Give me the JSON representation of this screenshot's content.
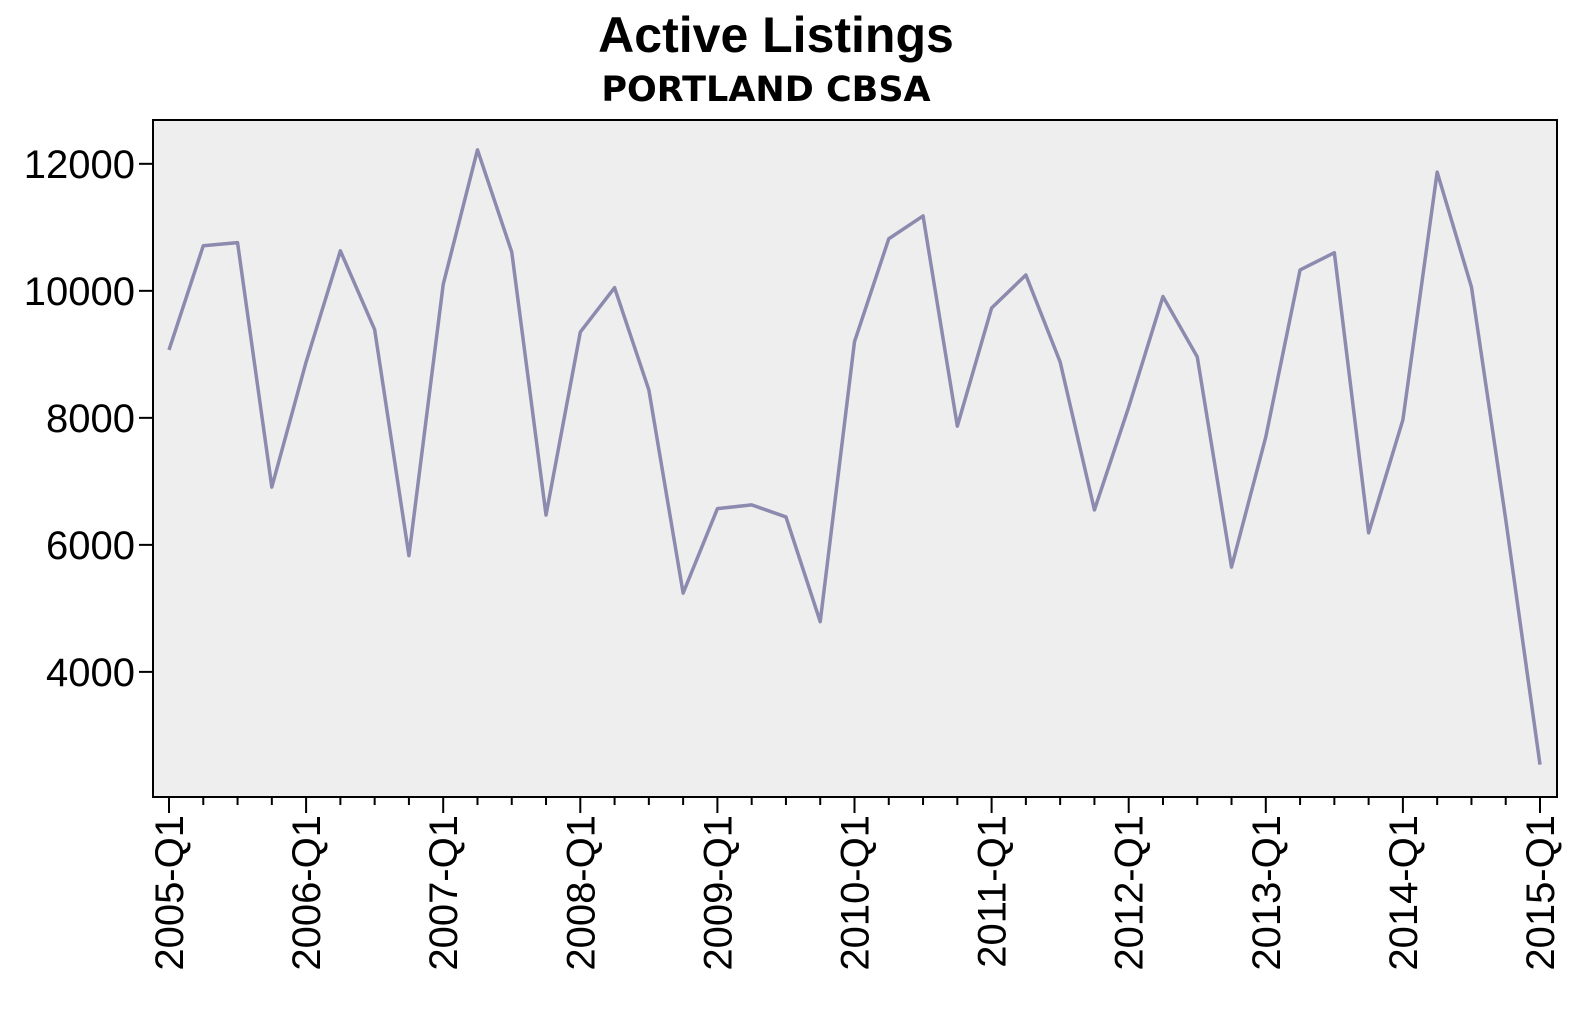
{
  "chart_data": {
    "type": "line",
    "title": "Active Listings",
    "subtitle": "PORTLAND CBSA",
    "categories": [
      "2005-Q1",
      null,
      null,
      null,
      "2006-Q1",
      null,
      null,
      null,
      "2007-Q1",
      null,
      null,
      null,
      "2008-Q1",
      null,
      null,
      null,
      "2009-Q1",
      null,
      null,
      null,
      "2010-Q1",
      null,
      null,
      null,
      "2011-Q1",
      null,
      null,
      null,
      "2012-Q1",
      null,
      null,
      null,
      "2013-Q1",
      null,
      null,
      null,
      "2014-Q1",
      null,
      null,
      null,
      "2015-Q1"
    ],
    "series": [
      {
        "name": "Active Listings",
        "color": "#8c8aae",
        "values": [
          9070,
          10710,
          10760,
          6910,
          8880,
          10630,
          9390,
          5830,
          10100,
          12220,
          10610,
          6470,
          9350,
          10050,
          8440,
          5240,
          6570,
          6630,
          6440,
          4790,
          9200,
          10820,
          11180,
          7870,
          9730,
          10250,
          8880,
          6550,
          8170,
          9910,
          8960,
          5650,
          7700,
          10330,
          10600,
          6190,
          7970,
          11870,
          10060,
          6400,
          2540
        ]
      }
    ],
    "ylim": [
      2030,
      12690
    ],
    "yticks": [
      4000,
      6000,
      8000,
      10000,
      12000
    ],
    "plot_background": "#eeeeee"
  }
}
